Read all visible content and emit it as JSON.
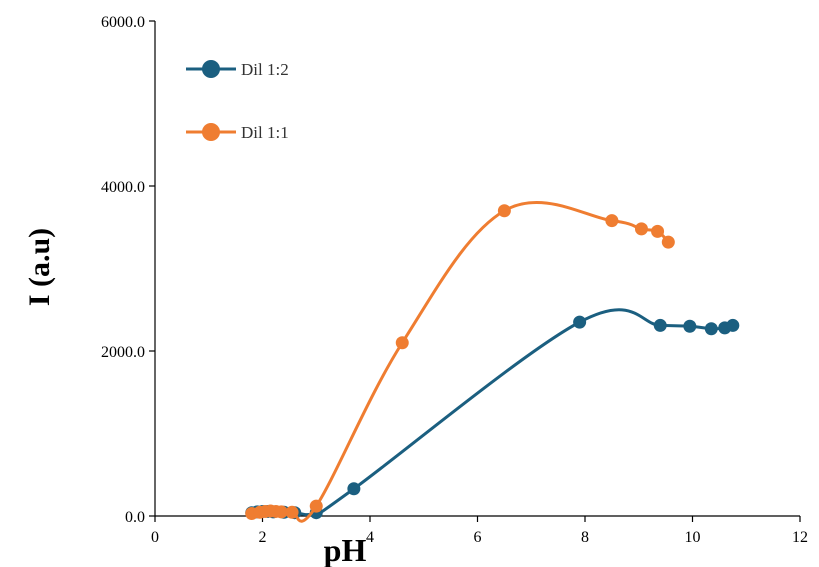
{
  "chart_data": {
    "type": "line",
    "title": "",
    "xlabel": "pH",
    "ylabel": "I (a.u)",
    "xlim": [
      0,
      12
    ],
    "ylim": [
      0,
      6000
    ],
    "xticks": [
      0,
      2,
      4,
      6,
      8,
      10,
      12
    ],
    "yticks": [
      0,
      2000,
      4000,
      6000
    ],
    "xtick_labels": [
      "0",
      "2",
      "4",
      "6",
      "8",
      "10",
      "12"
    ],
    "ytick_labels": [
      "0.0",
      "2000.0",
      "4000.0",
      "6000.0"
    ],
    "grid": false,
    "legend_position": "top-left",
    "series": [
      {
        "name": "Dil 1:2",
        "color": "#1b5f80",
        "x": [
          1.8,
          1.9,
          2.0,
          2.1,
          2.2,
          2.4,
          2.6,
          3.0,
          3.7,
          7.9,
          9.4,
          9.95,
          10.35,
          10.6,
          10.75
        ],
        "y": [
          40,
          50,
          55,
          55,
          50,
          45,
          40,
          40,
          330,
          2350,
          2310,
          2300,
          2270,
          2280,
          2310
        ]
      },
      {
        "name": "Dil 1:1",
        "color": "#ef7d31",
        "x": [
          1.8,
          1.95,
          2.05,
          2.15,
          2.25,
          2.35,
          2.55,
          3.0,
          4.6,
          6.5,
          8.5,
          9.05,
          9.35,
          9.55
        ],
        "y": [
          30,
          45,
          55,
          60,
          55,
          50,
          45,
          120,
          2100,
          3700,
          3580,
          3480,
          3450,
          3320
        ]
      }
    ]
  }
}
